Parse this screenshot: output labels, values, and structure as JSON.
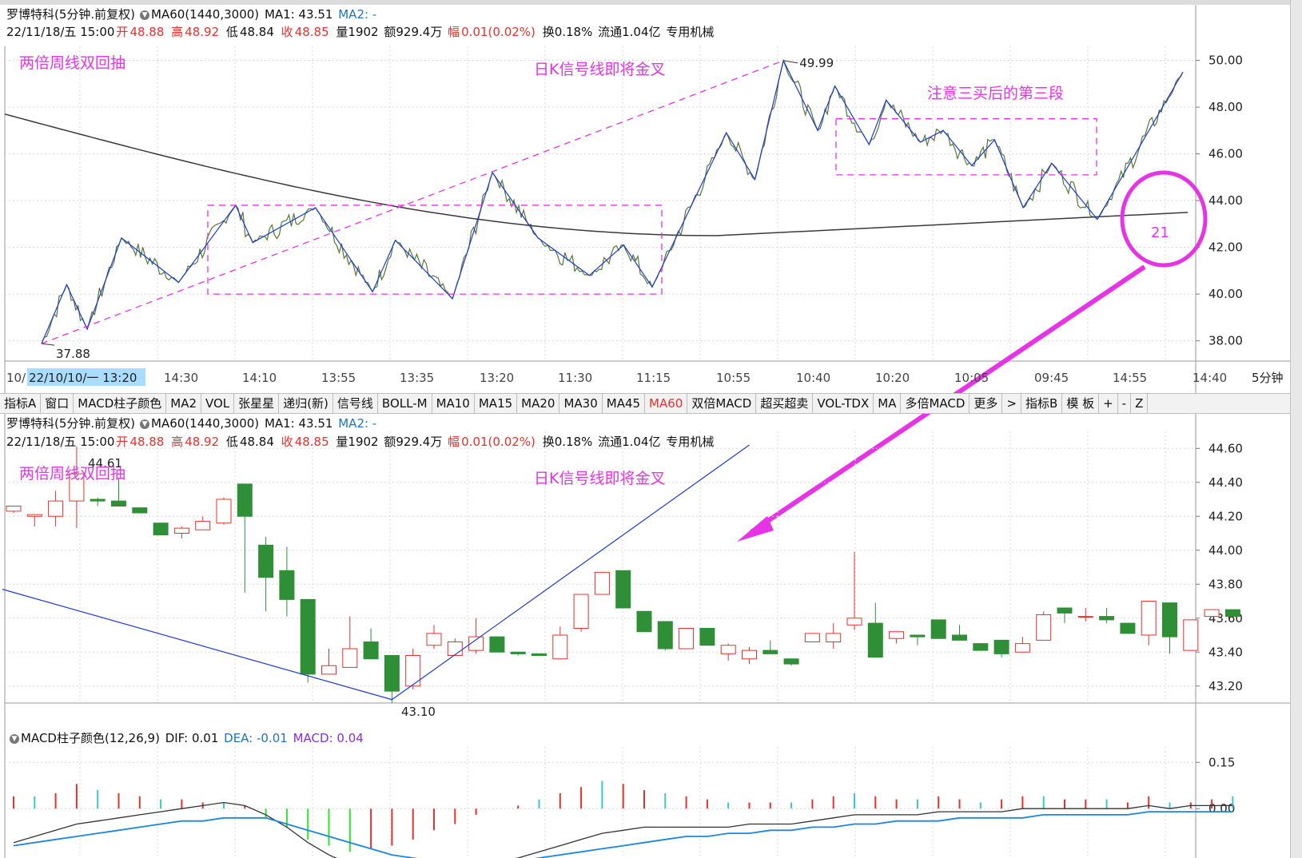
{
  "header1": {
    "stock_name": "罗博特科(5分钟.前复权)",
    "ma60": "MA60(1440,3000)",
    "ma1": "MA1: 43.51",
    "ma2": "MA2: -"
  },
  "header2": {
    "date": "22/11/18/五 15:00",
    "open_label": "开",
    "open": "48.88",
    "high_label": "高",
    "high": "48.92",
    "low_label": "低",
    "low": "48.84",
    "close_label": "收",
    "close": "48.85",
    "volume": "量1902",
    "amount": "额929.4万",
    "change_label": "幅",
    "change": "0.01(0.02%)",
    "turnover": "换0.18%",
    "float": "流通1.04亿",
    "sector": "专用机械"
  },
  "annotations": {
    "a1": "两倍周线双回抽",
    "a2": "日K信号线即将金叉",
    "a3": "注意三买后的第三段",
    "circle_label": "21",
    "high_label": "49.99",
    "low_label": "37.88",
    "mid_high_label": "44.61",
    "mid_low_label": "43.10"
  },
  "toolbar": [
    "指标A",
    "窗口",
    "MACD柱子颜色",
    "MA2",
    "VOL",
    "张星星",
    "递归(新)",
    "信号线",
    "BOLL-M",
    "MA10",
    "MA15",
    "MA20",
    "MA30",
    "MA45",
    "MA60",
    "双倍MACD",
    "超买超卖",
    "VOL-TDX",
    "MA",
    "多倍MACD",
    "更多",
    ">",
    "指标B",
    "模 板",
    "+",
    "-",
    "Z"
  ],
  "toolbar_active": "MA60",
  "time_axis": {
    "labels": [
      "10/",
      "22/10/10/一 13:20",
      "14:30",
      "14:10",
      "13:55",
      "13:35",
      "13:20",
      "11:30",
      "11:15",
      "10:55",
      "10:40",
      "10:20",
      "10:05",
      "09:45",
      "14:55",
      "14:40"
    ],
    "period": "5分钟"
  },
  "macd_header": {
    "name": "MACD柱子颜色(12,26,9)",
    "dif": "DIF: 0.01",
    "dea": "DEA: -0.01",
    "macd": "MACD: 0.04"
  },
  "colors": {
    "up": "#e8302c",
    "down": "#2f8f36",
    "annotation": "#e633e6",
    "zigzag": "#1f3ad8",
    "ma": "#3a3a3a",
    "dea": "#1a86e0",
    "macd_pos": "#e8302c",
    "macd_neg": "#3cc7c9"
  },
  "chart_data": [
    {
      "type": "line",
      "panel": "upper price (5-min, long range)",
      "ylim": [
        37.2,
        50.6
      ],
      "y_ticks": [
        "50.00",
        "48.00",
        "46.00",
        "44.00",
        "42.00",
        "40.00",
        "38.00"
      ],
      "zigzag_pivots": [
        37.88,
        40.4,
        38.5,
        42.4,
        40.5,
        43.8,
        42.2,
        43.7,
        40.1,
        42.3,
        39.8,
        45.2,
        42.4,
        40.8,
        42.1,
        40.3,
        46.9,
        44.9,
        49.99,
        47.0,
        48.9,
        46.4,
        48.3,
        46.5,
        47.0,
        45.5,
        46.6,
        43.7,
        45.6,
        43.2,
        49.5
      ],
      "ma_start": 47.7,
      "ma_min": 42.5,
      "ma_end": 43.5
    },
    {
      "type": "candlestick",
      "panel": "middle price (5-min, zoomed)",
      "ylim": [
        43.1,
        44.7
      ],
      "y_ticks": [
        "44.60",
        "44.40",
        "44.20",
        "44.00",
        "43.80",
        "43.60",
        "43.40",
        "43.20"
      ],
      "candles": [
        {
          "o": 44.23,
          "c": 44.26,
          "h": 44.26,
          "l": 44.22
        },
        {
          "o": 44.2,
          "c": 44.21,
          "h": 44.21,
          "l": 44.14
        },
        {
          "o": 44.2,
          "c": 44.29,
          "h": 44.35,
          "l": 44.14
        },
        {
          "o": 44.29,
          "c": 44.45,
          "h": 44.61,
          "l": 44.13
        },
        {
          "o": 44.3,
          "c": 44.29,
          "h": 44.31,
          "l": 44.26
        },
        {
          "o": 44.29,
          "c": 44.26,
          "h": 44.42,
          "l": 44.26
        },
        {
          "o": 44.25,
          "c": 44.22,
          "h": 44.25,
          "l": 44.22
        },
        {
          "o": 44.16,
          "c": 44.09,
          "h": 44.16,
          "l": 44.09
        },
        {
          "o": 44.1,
          "c": 44.13,
          "h": 44.14,
          "l": 44.07
        },
        {
          "o": 44.12,
          "c": 44.17,
          "h": 44.2,
          "l": 44.12
        },
        {
          "o": 44.16,
          "c": 44.3,
          "h": 44.31,
          "l": 44.15
        },
        {
          "o": 44.39,
          "c": 44.2,
          "h": 44.39,
          "l": 43.75
        },
        {
          "o": 44.03,
          "c": 43.84,
          "h": 44.08,
          "l": 43.64
        },
        {
          "o": 43.88,
          "c": 43.71,
          "h": 44.02,
          "l": 43.61
        },
        {
          "o": 43.71,
          "c": 43.27,
          "h": 43.71,
          "l": 43.22
        },
        {
          "o": 43.27,
          "c": 43.32,
          "h": 43.42,
          "l": 43.27
        },
        {
          "o": 43.31,
          "c": 43.42,
          "h": 43.61,
          "l": 43.31
        },
        {
          "o": 43.46,
          "c": 43.36,
          "h": 43.54,
          "l": 43.36
        },
        {
          "o": 43.38,
          "c": 43.17,
          "h": 43.38,
          "l": 43.1
        },
        {
          "o": 43.2,
          "c": 43.38,
          "h": 43.42,
          "l": 43.18
        },
        {
          "o": 43.44,
          "c": 43.51,
          "h": 43.56,
          "l": 43.42
        },
        {
          "o": 43.38,
          "c": 43.46,
          "h": 43.48,
          "l": 43.38
        },
        {
          "o": 43.41,
          "c": 43.49,
          "h": 43.6,
          "l": 43.39
        },
        {
          "o": 43.49,
          "c": 43.4,
          "h": 43.49,
          "l": 43.4
        },
        {
          "o": 43.4,
          "c": 43.39,
          "h": 43.4,
          "l": 43.38
        },
        {
          "o": 43.39,
          "c": 43.38,
          "h": 43.39,
          "l": 43.38
        },
        {
          "o": 43.36,
          "c": 43.5,
          "h": 43.55,
          "l": 43.36
        },
        {
          "o": 43.54,
          "c": 43.74,
          "h": 43.74,
          "l": 43.52
        },
        {
          "o": 43.74,
          "c": 43.87,
          "h": 43.87,
          "l": 43.74
        },
        {
          "o": 43.88,
          "c": 43.66,
          "h": 43.88,
          "l": 43.66
        },
        {
          "o": 43.64,
          "c": 43.52,
          "h": 43.64,
          "l": 43.52
        },
        {
          "o": 43.58,
          "c": 43.42,
          "h": 43.58,
          "l": 43.41
        },
        {
          "o": 43.42,
          "c": 43.54,
          "h": 43.54,
          "l": 43.42
        },
        {
          "o": 43.54,
          "c": 43.44,
          "h": 43.54,
          "l": 43.44
        },
        {
          "o": 43.39,
          "c": 43.44,
          "h": 43.45,
          "l": 43.35
        },
        {
          "o": 43.36,
          "c": 43.41,
          "h": 43.43,
          "l": 43.33
        },
        {
          "o": 43.41,
          "c": 43.39,
          "h": 43.47,
          "l": 43.39
        },
        {
          "o": 43.36,
          "c": 43.33,
          "h": 43.36,
          "l": 43.32
        },
        {
          "o": 43.46,
          "c": 43.51,
          "h": 43.51,
          "l": 43.46
        },
        {
          "o": 43.46,
          "c": 43.51,
          "h": 43.57,
          "l": 43.42
        },
        {
          "o": 43.56,
          "c": 43.6,
          "h": 43.99,
          "l": 43.53
        },
        {
          "o": 43.57,
          "c": 43.37,
          "h": 43.69,
          "l": 43.37
        },
        {
          "o": 43.48,
          "c": 43.52,
          "h": 43.52,
          "l": 43.45
        },
        {
          "o": 43.5,
          "c": 43.49,
          "h": 43.5,
          "l": 43.44
        },
        {
          "o": 43.59,
          "c": 43.48,
          "h": 43.59,
          "l": 43.48
        },
        {
          "o": 43.5,
          "c": 43.47,
          "h": 43.56,
          "l": 43.47
        },
        {
          "o": 43.45,
          "c": 43.41,
          "h": 43.45,
          "l": 43.41
        },
        {
          "o": 43.47,
          "c": 43.39,
          "h": 43.47,
          "l": 43.37
        },
        {
          "o": 43.4,
          "c": 43.45,
          "h": 43.49,
          "l": 43.4
        },
        {
          "o": 43.47,
          "c": 43.62,
          "h": 43.64,
          "l": 43.47
        },
        {
          "o": 43.66,
          "c": 43.63,
          "h": 43.66,
          "l": 43.57
        },
        {
          "o": 43.61,
          "c": 43.61,
          "h": 43.66,
          "l": 43.58
        },
        {
          "o": 43.61,
          "c": 43.59,
          "h": 43.66,
          "l": 43.57
        },
        {
          "o": 43.57,
          "c": 43.51,
          "h": 43.57,
          "l": 43.51
        },
        {
          "o": 43.5,
          "c": 43.7,
          "h": 43.7,
          "l": 43.44
        },
        {
          "o": 43.69,
          "c": 43.49,
          "h": 43.69,
          "l": 43.39
        },
        {
          "o": 43.41,
          "c": 43.59,
          "h": 43.59,
          "l": 43.41
        },
        {
          "o": 43.61,
          "c": 43.65,
          "h": 43.65,
          "l": 43.61
        },
        {
          "o": 43.65,
          "c": 43.61,
          "h": 43.65,
          "l": 43.61
        }
      ],
      "trend_lines": [
        {
          "from": [
            0,
            43.77
          ],
          "to": [
            18,
            43.12
          ]
        },
        {
          "from": [
            18,
            43.12
          ],
          "to": [
            35,
            44.62
          ]
        }
      ]
    },
    {
      "type": "bar",
      "panel": "MACD",
      "ylim": [
        -0.16,
        0.2
      ],
      "y_ticks": [
        "0.15",
        "0.00"
      ],
      "macd_bars": [
        0.04,
        0.04,
        0.05,
        0.08,
        0.06,
        0.05,
        0.04,
        0.03,
        0.03,
        0.02,
        0.02,
        0.01,
        -0.03,
        -0.06,
        -0.1,
        -0.12,
        -0.14,
        -0.13,
        -0.12,
        -0.1,
        -0.07,
        -0.05,
        -0.02,
        0.0,
        0.01,
        0.03,
        0.05,
        0.07,
        0.09,
        0.08,
        0.06,
        0.05,
        0.04,
        0.03,
        0.02,
        0.02,
        0.02,
        0.02,
        0.03,
        0.04,
        0.05,
        0.04,
        0.03,
        0.03,
        0.04,
        0.03,
        0.02,
        0.03,
        0.04,
        0.04,
        0.03,
        0.03,
        0.03,
        0.02,
        0.04,
        0.02,
        0.02,
        0.03,
        0.04
      ],
      "dif": [
        -0.11,
        -0.09,
        -0.07,
        -0.05,
        -0.04,
        -0.03,
        -0.02,
        -0.01,
        0.0,
        0.01,
        0.02,
        0.01,
        -0.02,
        -0.06,
        -0.11,
        -0.15,
        -0.18,
        -0.2,
        -0.21,
        -0.21,
        -0.2,
        -0.19,
        -0.18,
        -0.17,
        -0.16,
        -0.14,
        -0.12,
        -0.1,
        -0.08,
        -0.07,
        -0.06,
        -0.06,
        -0.06,
        -0.06,
        -0.06,
        -0.05,
        -0.05,
        -0.05,
        -0.04,
        -0.03,
        -0.02,
        -0.02,
        -0.02,
        -0.02,
        -0.01,
        -0.01,
        -0.01,
        -0.01,
        0.0,
        0.0,
        0.0,
        0.0,
        0.0,
        0.0,
        0.01,
        0.0,
        0.01,
        0.01,
        0.01
      ],
      "dea": [
        -0.12,
        -0.11,
        -0.1,
        -0.09,
        -0.08,
        -0.07,
        -0.06,
        -0.05,
        -0.04,
        -0.04,
        -0.03,
        -0.03,
        -0.03,
        -0.05,
        -0.07,
        -0.09,
        -0.11,
        -0.13,
        -0.15,
        -0.16,
        -0.17,
        -0.17,
        -0.17,
        -0.17,
        -0.17,
        -0.16,
        -0.15,
        -0.14,
        -0.13,
        -0.12,
        -0.11,
        -0.1,
        -0.09,
        -0.09,
        -0.08,
        -0.08,
        -0.07,
        -0.07,
        -0.06,
        -0.06,
        -0.05,
        -0.05,
        -0.04,
        -0.04,
        -0.04,
        -0.03,
        -0.03,
        -0.03,
        -0.03,
        -0.02,
        -0.02,
        -0.02,
        -0.02,
        -0.02,
        -0.01,
        -0.01,
        -0.01,
        -0.01,
        -0.01
      ]
    }
  ]
}
